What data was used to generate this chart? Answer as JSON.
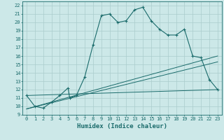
{
  "title": "",
  "xlabel": "Humidex (Indice chaleur)",
  "bg_color": "#cce8e8",
  "grid_color": "#aacccc",
  "line_color": "#1a6b6b",
  "xlim": [
    -0.5,
    23.5
  ],
  "ylim": [
    9,
    22.5
  ],
  "xticks": [
    0,
    1,
    2,
    3,
    4,
    5,
    6,
    7,
    8,
    9,
    10,
    11,
    12,
    13,
    14,
    15,
    16,
    17,
    18,
    19,
    20,
    21,
    22,
    23
  ],
  "yticks": [
    9,
    10,
    11,
    12,
    13,
    14,
    15,
    16,
    17,
    18,
    19,
    20,
    21,
    22
  ],
  "curve1_x": [
    0,
    1,
    2,
    3,
    4,
    5,
    5.2,
    6,
    7,
    8,
    9,
    10,
    11,
    12,
    13,
    14,
    15,
    16,
    17,
    18,
    19,
    20,
    21,
    22,
    23
  ],
  "curve1_y": [
    11.3,
    10.0,
    9.8,
    10.5,
    11.3,
    12.2,
    11.0,
    11.3,
    13.5,
    17.3,
    20.8,
    21.0,
    20.0,
    20.2,
    21.5,
    21.8,
    20.2,
    19.2,
    18.5,
    18.5,
    19.2,
    16.0,
    15.8,
    13.2,
    12.0
  ],
  "line1_x": [
    0,
    23
  ],
  "line1_y": [
    11.3,
    12.0
  ],
  "line2_x": [
    0,
    23
  ],
  "line2_y": [
    9.7,
    16.0
  ],
  "line3_x": [
    0,
    23
  ],
  "line3_y": [
    9.7,
    15.3
  ]
}
